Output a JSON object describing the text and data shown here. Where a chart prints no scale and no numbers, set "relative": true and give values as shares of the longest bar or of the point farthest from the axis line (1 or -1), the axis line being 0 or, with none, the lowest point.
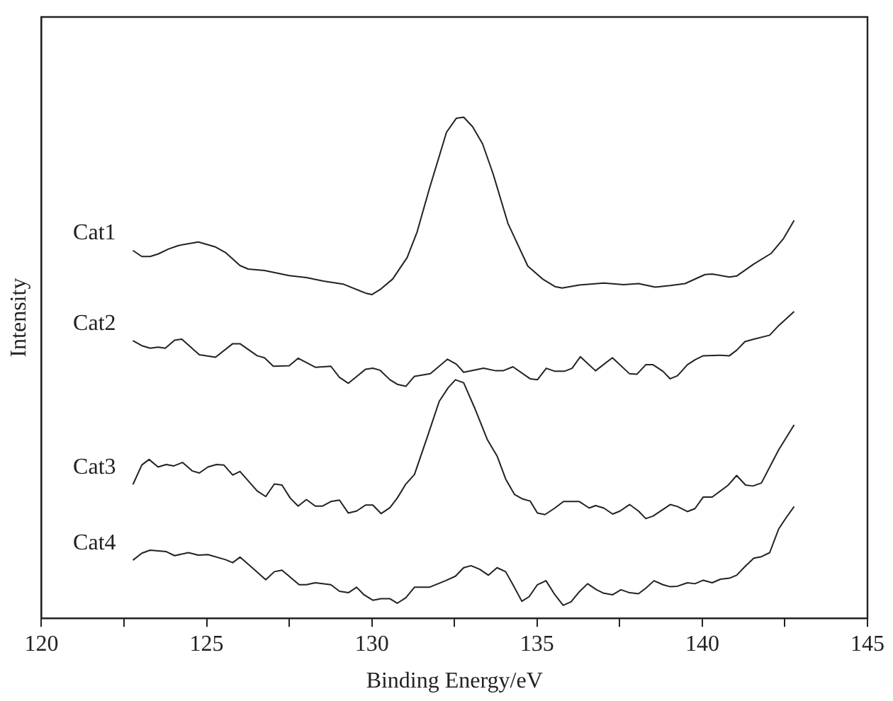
{
  "chart_data": {
    "type": "line",
    "xlabel": "Binding Energy/eV",
    "ylabel": "Intensity",
    "relative": true,
    "legend": false,
    "grid": false,
    "marker": "none",
    "line_style": "solid",
    "xlim": [
      120,
      145
    ],
    "xticks": [
      120,
      {
        "value": 122.5,
        "label": null
      },
      125,
      {
        "value": 127.5,
        "label": null
      },
      130,
      {
        "value": 132.5,
        "label": null
      },
      135,
      {
        "value": 137.5,
        "label": null
      },
      140,
      {
        "value": 142.5,
        "label": null
      },
      145
    ],
    "series": [
      {
        "name": "Cat1",
        "color": "#222222",
        "x": [
          122.77,
          123.04,
          123.29,
          123.53,
          123.85,
          124.15,
          124.75,
          125.27,
          125.57,
          126.01,
          126.26,
          126.75,
          127.5,
          128.02,
          128.54,
          129.13,
          129.81,
          130.0,
          130.25,
          130.63,
          131.07,
          131.37,
          131.74,
          132.26,
          132.56,
          132.78,
          133.05,
          133.35,
          133.67,
          134.12,
          134.72,
          135.17,
          135.54,
          135.76,
          136.28,
          137.02,
          137.62,
          138.07,
          138.58,
          139.03,
          139.48,
          140.08,
          140.3,
          140.82,
          141.04,
          141.56,
          142.08,
          142.46,
          142.78
        ],
        "values": [
          0.734,
          0.722,
          0.722,
          0.727,
          0.737,
          0.744,
          0.751,
          0.741,
          0.73,
          0.704,
          0.697,
          0.694,
          0.684,
          0.68,
          0.673,
          0.667,
          0.649,
          0.646,
          0.656,
          0.677,
          0.72,
          0.771,
          0.857,
          0.97,
          0.998,
          1,
          0.981,
          0.947,
          0.887,
          0.788,
          0.703,
          0.677,
          0.662,
          0.659,
          0.665,
          0.669,
          0.666,
          0.668,
          0.661,
          0.664,
          0.668,
          0.686,
          0.687,
          0.681,
          0.683,
          0.707,
          0.728,
          0.758,
          0.794
        ]
      },
      {
        "name": "Cat2",
        "color": "#222222",
        "x": [
          122.77,
          123.04,
          123.29,
          123.53,
          123.75,
          124.03,
          124.25,
          124.78,
          125.27,
          125.79,
          126.01,
          126.53,
          126.75,
          127.02,
          127.5,
          127.77,
          128.29,
          128.76,
          129.02,
          129.29,
          129.81,
          130.03,
          130.25,
          130.55,
          130.77,
          131.03,
          131.29,
          131.77,
          132.29,
          132.56,
          132.78,
          133.38,
          133.75,
          133.97,
          134.27,
          134.79,
          135.01,
          135.28,
          135.54,
          135.83,
          136.06,
          136.31,
          136.77,
          137.28,
          137.8,
          138.02,
          138.29,
          138.51,
          138.81,
          139.03,
          139.25,
          139.55,
          139.78,
          140.03,
          140.52,
          140.82,
          141.04,
          141.29,
          141.56,
          142.04,
          142.31,
          142.78
        ],
        "values": [
          0.554,
          0.544,
          0.539,
          0.541,
          0.539,
          0.555,
          0.557,
          0.526,
          0.521,
          0.548,
          0.548,
          0.524,
          0.52,
          0.503,
          0.504,
          0.519,
          0.501,
          0.503,
          0.481,
          0.469,
          0.497,
          0.499,
          0.495,
          0.476,
          0.467,
          0.463,
          0.483,
          0.488,
          0.517,
          0.507,
          0.491,
          0.499,
          0.494,
          0.494,
          0.502,
          0.478,
          0.476,
          0.499,
          0.493,
          0.493,
          0.499,
          0.522,
          0.494,
          0.52,
          0.488,
          0.487,
          0.506,
          0.506,
          0.493,
          0.478,
          0.484,
          0.506,
          0.516,
          0.524,
          0.525,
          0.524,
          0.535,
          0.552,
          0.557,
          0.565,
          0.584,
          0.612
        ]
      },
      {
        "name": "Cat3",
        "color": "#222222",
        "x": [
          122.77,
          123.04,
          123.26,
          123.53,
          123.78,
          124.0,
          124.27,
          124.57,
          124.78,
          125.04,
          125.3,
          125.52,
          125.79,
          126.01,
          126.53,
          126.79,
          127.05,
          127.28,
          127.53,
          127.77,
          128.02,
          128.29,
          128.51,
          128.76,
          129.02,
          129.29,
          129.54,
          129.81,
          130.03,
          130.28,
          130.55,
          130.77,
          131.03,
          131.29,
          131.67,
          132.04,
          132.31,
          132.53,
          132.78,
          133.11,
          133.5,
          133.79,
          134.05,
          134.32,
          134.57,
          134.79,
          135.01,
          135.24,
          135.54,
          135.8,
          136.28,
          136.58,
          136.77,
          137.02,
          137.29,
          137.51,
          137.8,
          138.07,
          138.29,
          138.51,
          139.03,
          139.25,
          139.55,
          139.78,
          140.03,
          140.3,
          140.79,
          141.04,
          141.31,
          141.53,
          141.79,
          142.31,
          142.78
        ],
        "values": [
          0.267,
          0.306,
          0.317,
          0.302,
          0.307,
          0.304,
          0.311,
          0.294,
          0.29,
          0.302,
          0.307,
          0.306,
          0.286,
          0.293,
          0.254,
          0.243,
          0.268,
          0.266,
          0.24,
          0.224,
          0.237,
          0.224,
          0.224,
          0.233,
          0.236,
          0.21,
          0.214,
          0.226,
          0.226,
          0.209,
          0.221,
          0.24,
          0.268,
          0.287,
          0.36,
          0.433,
          0.46,
          0.476,
          0.47,
          0.42,
          0.356,
          0.324,
          0.278,
          0.247,
          0.238,
          0.234,
          0.21,
          0.207,
          0.22,
          0.233,
          0.233,
          0.22,
          0.225,
          0.22,
          0.208,
          0.214,
          0.227,
          0.214,
          0.199,
          0.204,
          0.227,
          0.223,
          0.213,
          0.219,
          0.242,
          0.242,
          0.266,
          0.285,
          0.266,
          0.264,
          0.27,
          0.336,
          0.386
        ]
      },
      {
        "name": "Cat4",
        "color": "#222222",
        "x": [
          122.77,
          123.04,
          123.29,
          123.78,
          124.03,
          124.45,
          124.75,
          125.04,
          125.57,
          125.79,
          126.01,
          126.38,
          126.79,
          127.05,
          127.28,
          127.8,
          128.02,
          128.29,
          128.76,
          129.02,
          129.29,
          129.54,
          129.76,
          130.03,
          130.28,
          130.55,
          130.77,
          131.03,
          131.29,
          131.74,
          132.23,
          132.53,
          132.78,
          133.0,
          133.26,
          133.53,
          133.79,
          134.05,
          134.27,
          134.54,
          134.76,
          135.01,
          135.27,
          135.54,
          135.79,
          136.03,
          136.28,
          136.53,
          136.8,
          137.02,
          137.29,
          137.54,
          137.8,
          138.07,
          138.29,
          138.54,
          138.81,
          139.03,
          139.25,
          139.55,
          139.78,
          140.03,
          140.3,
          140.55,
          140.82,
          141.04,
          141.29,
          141.56,
          141.79,
          142.04,
          142.31,
          142.54,
          142.78
        ],
        "values": [
          0.116,
          0.13,
          0.136,
          0.133,
          0.125,
          0.131,
          0.126,
          0.127,
          0.117,
          0.111,
          0.122,
          0.101,
          0.077,
          0.093,
          0.096,
          0.067,
          0.067,
          0.071,
          0.067,
          0.054,
          0.051,
          0.062,
          0.047,
          0.036,
          0.039,
          0.039,
          0.03,
          0.041,
          0.062,
          0.062,
          0.075,
          0.084,
          0.101,
          0.105,
          0.098,
          0.086,
          0.101,
          0.093,
          0.067,
          0.034,
          0.043,
          0.067,
          0.075,
          0.047,
          0.026,
          0.033,
          0.053,
          0.069,
          0.057,
          0.05,
          0.047,
          0.057,
          0.051,
          0.049,
          0.06,
          0.075,
          0.067,
          0.063,
          0.064,
          0.071,
          0.069,
          0.076,
          0.071,
          0.078,
          0.08,
          0.086,
          0.103,
          0.12,
          0.123,
          0.131,
          0.178,
          0.201,
          0.223
        ]
      }
    ]
  }
}
